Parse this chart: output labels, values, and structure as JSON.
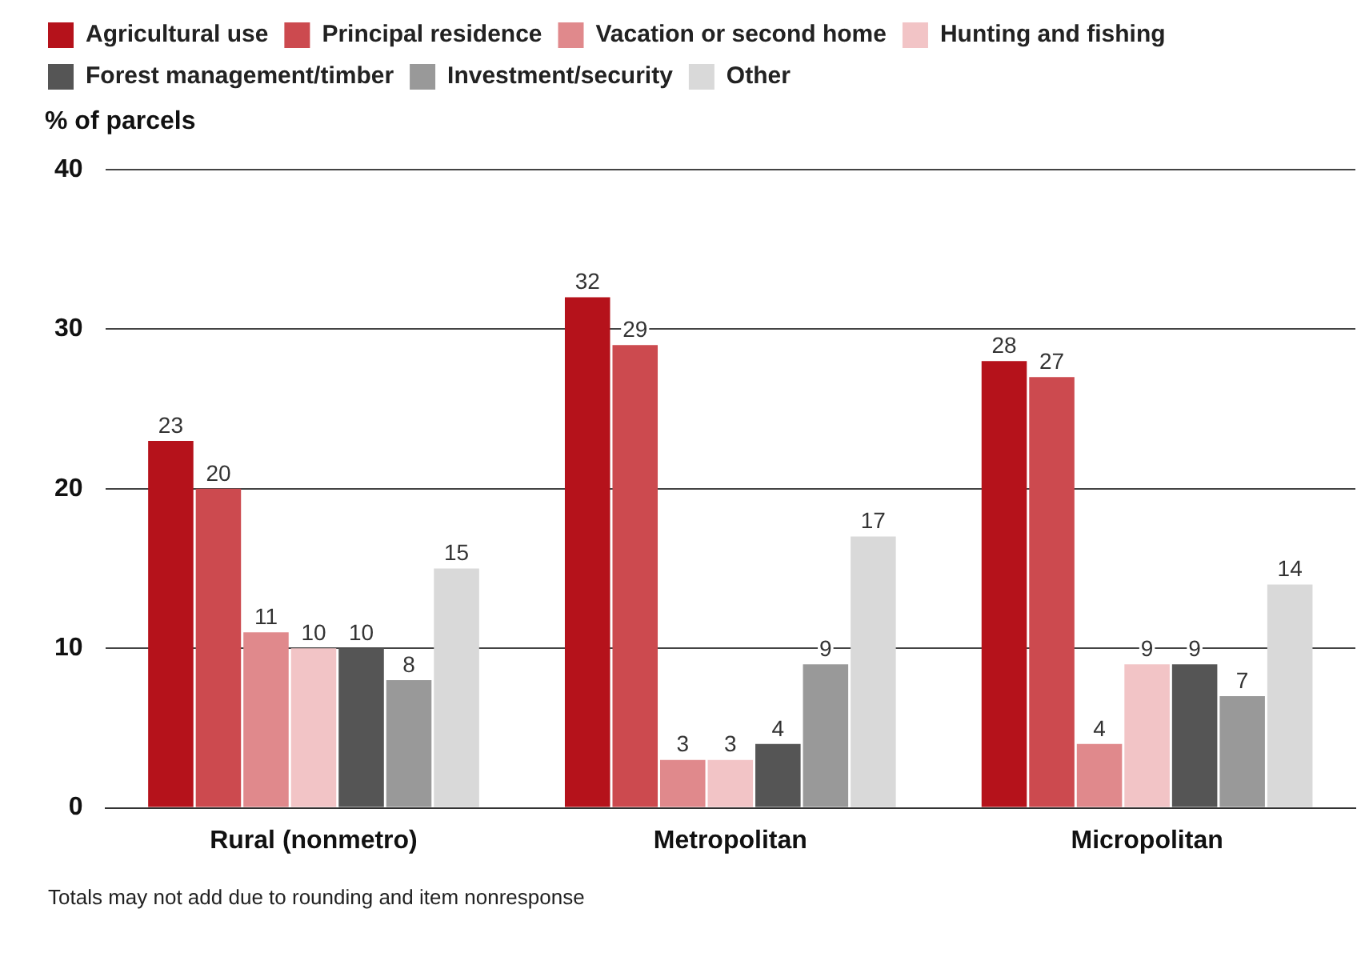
{
  "chart_data": {
    "type": "bar",
    "ylabel": "% of parcels",
    "categories": [
      "Rural (nonmetro)",
      "Metropolitan",
      "Micropolitan"
    ],
    "series": [
      {
        "name": "Agricultural use",
        "color": "#b5121b",
        "values": [
          23,
          32,
          28
        ]
      },
      {
        "name": "Principal residence",
        "color": "#cc4a4f",
        "values": [
          20,
          29,
          27
        ]
      },
      {
        "name": "Vacation or second home",
        "color": "#e0898c",
        "values": [
          11,
          3,
          4
        ]
      },
      {
        "name": "Hunting and fishing",
        "color": "#f2c4c6",
        "values": [
          10,
          3,
          9
        ]
      },
      {
        "name": "Forest management/timber",
        "color": "#555555",
        "values": [
          10,
          4,
          9
        ]
      },
      {
        "name": "Investment/security",
        "color": "#999999",
        "values": [
          8,
          9,
          7
        ]
      },
      {
        "name": "Other",
        "color": "#d9d9d9",
        "values": [
          15,
          17,
          14
        ]
      }
    ],
    "ylim": [
      0,
      40
    ],
    "yticks": [
      0,
      10,
      20,
      30,
      40
    ],
    "grid": "y",
    "legend": "top left",
    "data_labels": true,
    "annotations": [
      "Totals may not add due to rounding and item nonresponse"
    ]
  }
}
